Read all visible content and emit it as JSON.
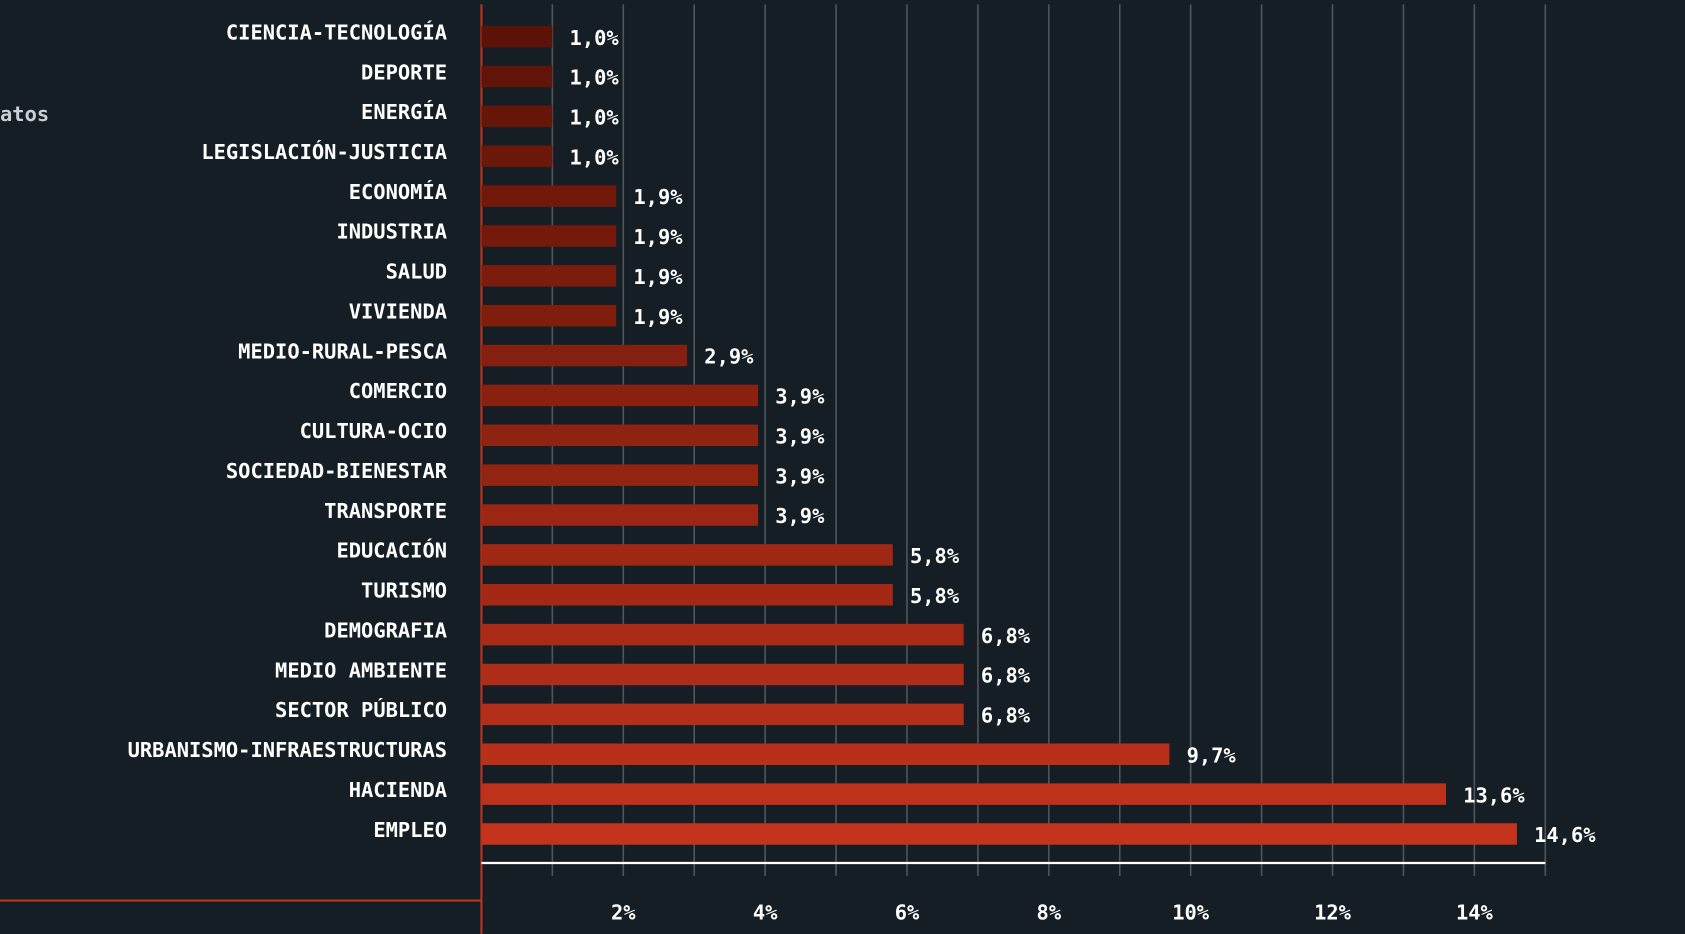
{
  "chart_data": {
    "type": "barh",
    "side_text": "atos",
    "categories": [
      "CIENCIA-TECNOLOGÍA",
      "DEPORTE",
      "ENERGÍA",
      "LEGISLACIÓN-JUSTICIA",
      "ECONOMÍA",
      "INDUSTRIA",
      "SALUD",
      "VIVIENDA",
      "MEDIO-RURAL-PESCA",
      "COMERCIO",
      "CULTURA-OCIO",
      "SOCIEDAD-BIENESTAR",
      "TRANSPORTE",
      "EDUCACIÓN",
      "TURISMO",
      "DEMOGRAFIA",
      "MEDIO AMBIENTE",
      "SECTOR PÚBLICO",
      "URBANISMO-INFRAESTRUCTURAS",
      "HACIENDA",
      "EMPLEO"
    ],
    "values": [
      1.0,
      1.0,
      1.0,
      1.0,
      1.9,
      1.9,
      1.9,
      1.9,
      2.9,
      3.9,
      3.9,
      3.9,
      3.9,
      5.8,
      5.8,
      6.8,
      6.8,
      6.8,
      9.7,
      13.6,
      14.6
    ],
    "value_labels": [
      "1,0%",
      "1,0%",
      "1,0%",
      "1,0%",
      "1,9%",
      "1,9%",
      "1,9%",
      "1,9%",
      "2,9%",
      "3,9%",
      "3,9%",
      "3,9%",
      "3,9%",
      "5,8%",
      "5,8%",
      "6,8%",
      "6,8%",
      "6,8%",
      "9,7%",
      "13,6%",
      "14,6%"
    ],
    "colors": [
      "#5c1206",
      "#611408",
      "#661509",
      "#6b170a",
      "#70190a",
      "#751a0b",
      "#7b1c0c",
      "#801e0d",
      "#851f0f",
      "#8a2110",
      "#8f2311",
      "#942412",
      "#9a2613",
      "#9f2814",
      "#a42915",
      "#a92b17",
      "#ae2d18",
      "#b42f19",
      "#b9301a",
      "#be321b",
      "#c4331c"
    ],
    "xlim": [
      0,
      15
    ],
    "xticks": [
      {
        "value": 2,
        "label": "2%"
      },
      {
        "value": 4,
        "label": "4%"
      },
      {
        "value": 6,
        "label": "6%"
      },
      {
        "value": 8,
        "label": "8%"
      },
      {
        "value": 10,
        "label": "10%"
      },
      {
        "value": 12,
        "label": "12%"
      },
      {
        "value": 14,
        "label": "14%"
      }
    ],
    "xgrid_lines": [
      1,
      2,
      3,
      4,
      5,
      6,
      7,
      8,
      9,
      10,
      11,
      12,
      13,
      14,
      15
    ]
  }
}
